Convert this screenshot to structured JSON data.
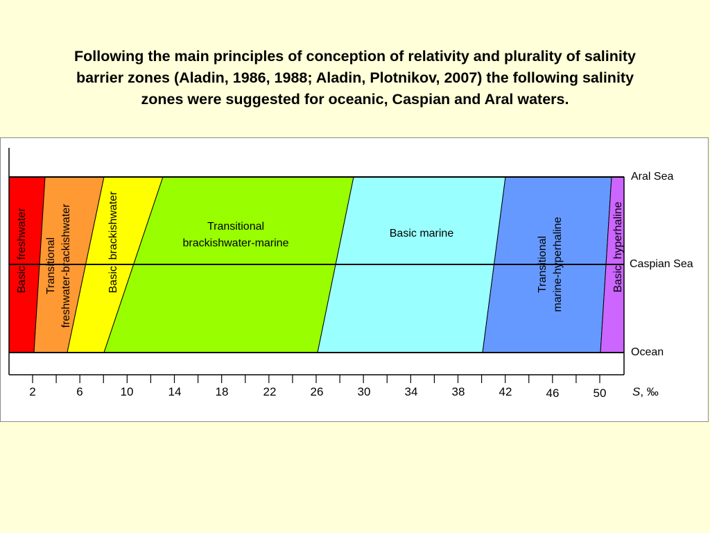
{
  "title_lines": [
    "Following the main principles of conception of relativity and plurality of salinity",
    "barrier zones (Aladin, 1986, 1988; Aladin, Plotnikov, 2007) the following salinity",
    "zones were suggested for oceanic, Caspian and Aral  waters."
  ],
  "levels": {
    "aral": "Aral Sea",
    "caspian": "Caspian Sea",
    "ocean": "Ocean"
  },
  "axis": {
    "label_var": "S",
    "label_unit": ", ‰",
    "ticks": [
      "2",
      "6",
      "10",
      "14",
      "18",
      "22",
      "26",
      "30",
      "34",
      "38",
      "42",
      "46",
      "50"
    ]
  },
  "zones": [
    {
      "id": "basic-freshwater",
      "color": "#ff0000",
      "lines": [
        "Basic  freshwater"
      ],
      "rotated": true
    },
    {
      "id": "transitional-freshwater-brackishwater",
      "color": "#ff9933",
      "lines": [
        "Transitional",
        "freshwater-brackishwater"
      ],
      "rotated": true
    },
    {
      "id": "basic-brackishwater",
      "color": "#ffff00",
      "lines": [
        "Basic  brackishwater"
      ],
      "rotated": true
    },
    {
      "id": "transitional-brackishwater-marine",
      "color": "#99ff00",
      "lines": [
        "Transitional",
        "brackishwater-marine"
      ],
      "rotated": false
    },
    {
      "id": "basic-marine",
      "color": "#99ffff",
      "lines": [
        "Basic marine"
      ],
      "rotated": false
    },
    {
      "id": "transitional-marine-hyperhaline",
      "color": "#6699ff",
      "lines": [
        "Transitional",
        "marine-hyperhaline"
      ],
      "rotated": true
    },
    {
      "id": "basic-hyperhaline",
      "color": "#cc66ff",
      "lines": [
        "Basic  hyperhaline"
      ],
      "rotated": true
    }
  ]
}
